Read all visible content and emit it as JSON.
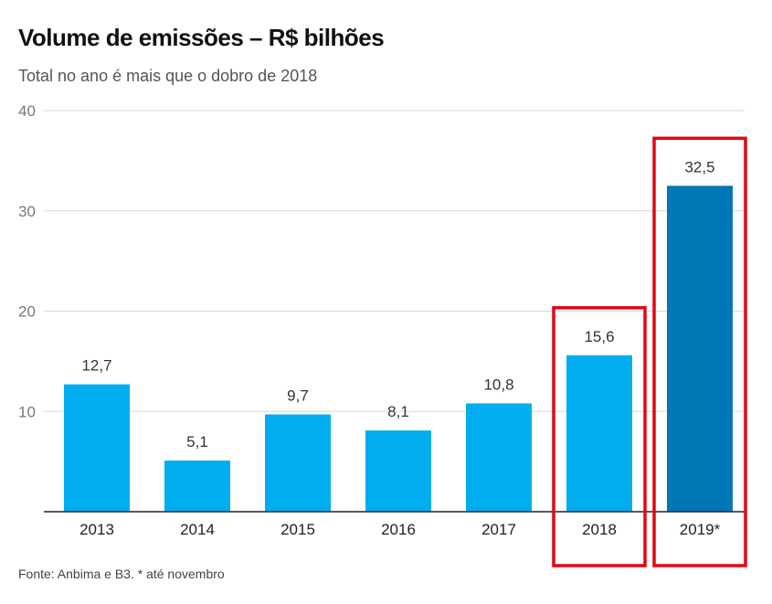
{
  "header": {
    "title": "Volume de emissões – R$ bilhões",
    "subtitle": "Total no ano é mais que o dobro de 2018"
  },
  "footer": {
    "source": "Fonte: Anbima e B3. * até novembro"
  },
  "colors": {
    "bar": "#00aeef",
    "bar_highlight": "#0077b6",
    "highlight_box": "#e30613",
    "grid": "#d9d9d9",
    "axis": "#222222"
  },
  "chart_data": {
    "type": "bar",
    "categories": [
      "2013",
      "2014",
      "2015",
      "2016",
      "2017",
      "2018",
      "2019*"
    ],
    "values": [
      12.7,
      5.1,
      9.7,
      8.1,
      10.8,
      15.6,
      32.5
    ],
    "value_labels": [
      "12,7",
      "5,1",
      "9,7",
      "8,1",
      "10,8",
      "15,6",
      "32,5"
    ],
    "ylim": [
      0,
      40
    ],
    "yticks": [
      10,
      20,
      30,
      40
    ],
    "ytick_labels": [
      "10",
      "20",
      "30",
      "40"
    ],
    "grid": true,
    "highlighted_bar_index": 6,
    "boxed_categories": [
      "2018",
      "2019*"
    ]
  }
}
